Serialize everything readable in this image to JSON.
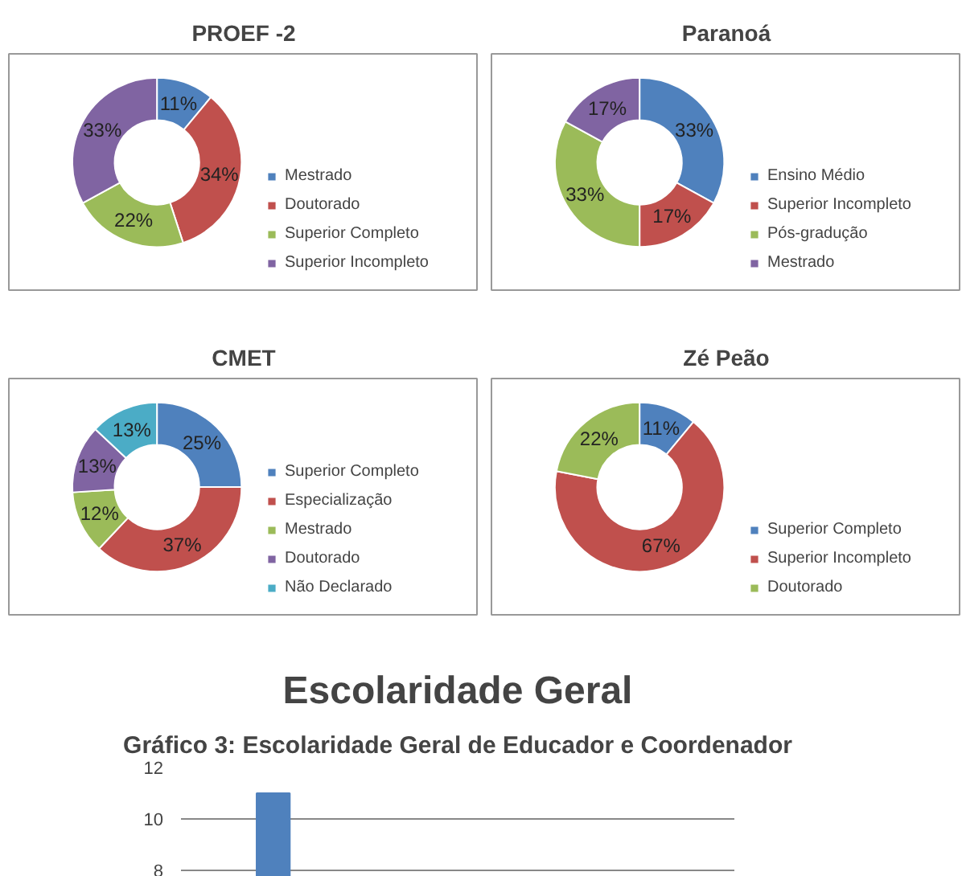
{
  "chart_data": [
    {
      "type": "donut",
      "title": "PROEF -2",
      "categories": [
        "Mestrado",
        "Doutorado",
        "Superior Completo",
        "Superior Incompleto"
      ],
      "values": [
        11,
        34,
        22,
        33
      ],
      "value_labels": [
        "11%",
        "34%",
        "22%",
        "33%"
      ],
      "colors": [
        "#4f81bd",
        "#c0504d",
        "#9bbb59",
        "#8064a2"
      ],
      "legend": "right"
    },
    {
      "type": "donut",
      "title": "Paranoá",
      "categories": [
        "Ensino Médio",
        "Superior Incompleto",
        "Pós-gradução",
        "Mestrado"
      ],
      "values": [
        33,
        17,
        33,
        17
      ],
      "value_labels": [
        "33%",
        "17%",
        "33%",
        "17%"
      ],
      "colors": [
        "#4f81bd",
        "#c0504d",
        "#9bbb59",
        "#8064a2"
      ],
      "legend": "right"
    },
    {
      "type": "donut",
      "title": "CMET",
      "categories": [
        "Superior Completo",
        "Especialização",
        "Mestrado",
        "Doutorado",
        "Não Declarado"
      ],
      "values": [
        25,
        37,
        12,
        13,
        13
      ],
      "value_labels": [
        "25%",
        "37%",
        "12%",
        "13%",
        "13%"
      ],
      "colors": [
        "#4f81bd",
        "#c0504d",
        "#9bbb59",
        "#8064a2",
        "#4bacc6"
      ],
      "legend": "right"
    },
    {
      "type": "donut",
      "title": "Zé Peão",
      "categories": [
        "Superior Completo",
        "Superior Incompleto",
        "Doutorado"
      ],
      "values": [
        11,
        67,
        22
      ],
      "value_labels": [
        "11%",
        "67%",
        "22%"
      ],
      "colors": [
        "#4f81bd",
        "#c0504d",
        "#9bbb59"
      ],
      "legend": "right"
    },
    {
      "type": "bar",
      "title": "Escolaridade Geral",
      "annotations": [
        "Gráfico 3: Escolaridade Geral de Educador e Coordenador"
      ],
      "categories": [
        null,
        null,
        null
      ],
      "values": [
        11,
        null,
        null
      ],
      "color": "#4f81bd",
      "ylim": [
        7.5,
        12
      ],
      "yticks": [
        8,
        10,
        12
      ],
      "grid": "y",
      "tick_labels": "y"
    }
  ]
}
